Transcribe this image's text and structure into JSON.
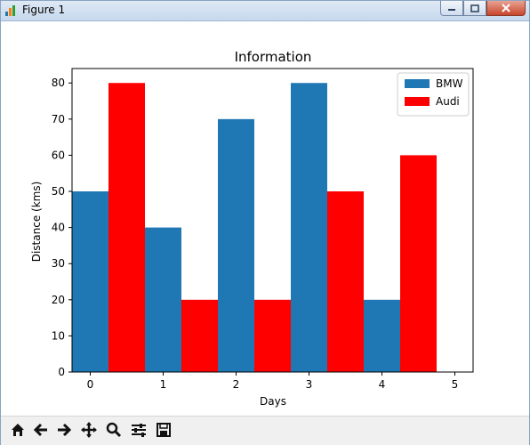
{
  "window": {
    "title": "Figure 1"
  },
  "toolbar": {
    "buttons": [
      "home-icon",
      "back-arrow-icon",
      "forward-arrow-icon",
      "pan-icon",
      "zoom-icon",
      "configure-subplots-icon",
      "save-icon"
    ]
  },
  "colors": {
    "bmw": "#1f77b4",
    "audi": "#ff0000"
  },
  "chart_data": {
    "type": "bar",
    "title": "Information",
    "xlabel": "Days",
    "ylabel": "Distance (kms)",
    "x_ticks": [
      0,
      1,
      2,
      3,
      4,
      5
    ],
    "y_ticks": [
      0,
      10,
      20,
      30,
      40,
      50,
      60,
      70,
      80
    ],
    "xlim": [
      -0.25,
      5.25
    ],
    "ylim": [
      0,
      84
    ],
    "grid": false,
    "legend_position": "top-right",
    "bar_width": 0.5,
    "series": [
      {
        "name": "BMW",
        "color": "#1f77b4",
        "x": [
          0,
          1,
          2,
          3,
          4
        ],
        "values": [
          50,
          40,
          70,
          80,
          20
        ]
      },
      {
        "name": "Audi",
        "color": "#ff0000",
        "x": [
          0.5,
          1.5,
          2.5,
          3.5,
          4.5
        ],
        "values": [
          80,
          20,
          20,
          50,
          60
        ]
      }
    ]
  }
}
